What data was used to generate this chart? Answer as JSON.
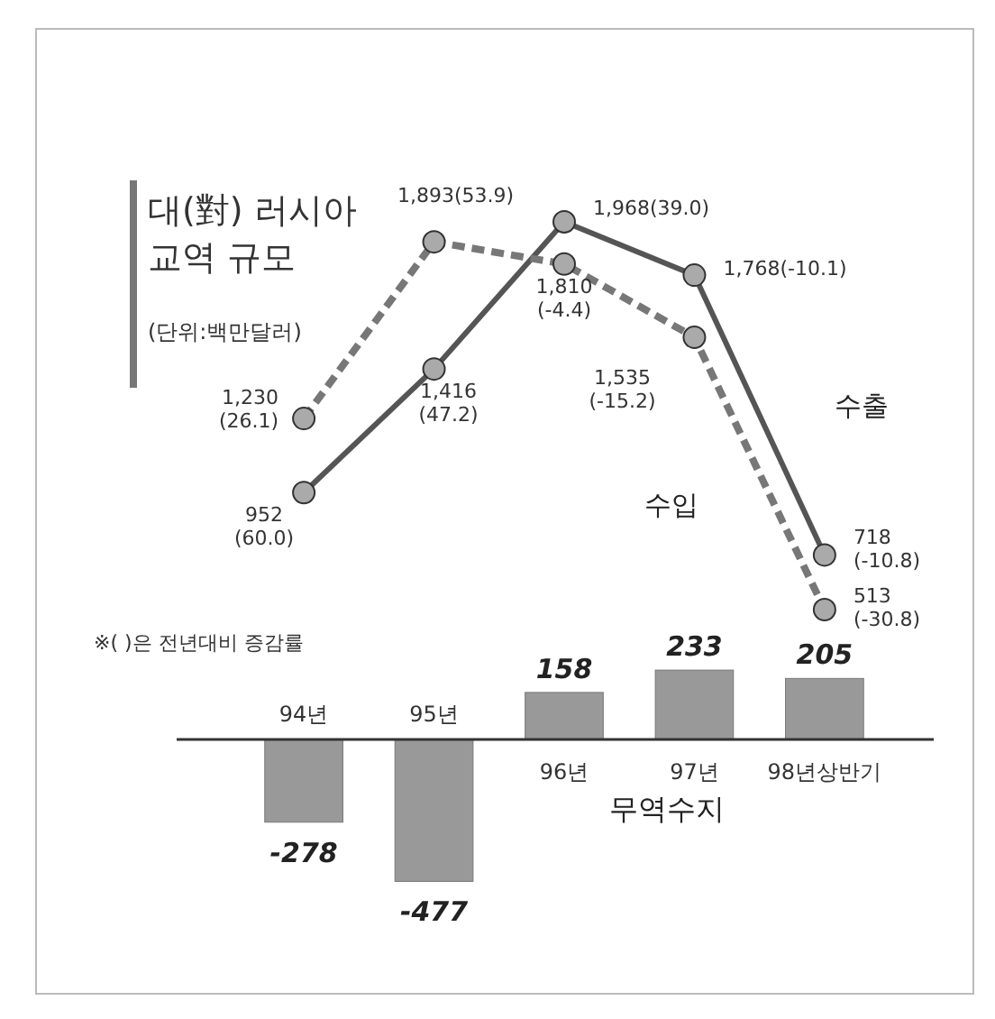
{
  "chart_data": [
    {
      "type": "line",
      "title": "대(對) 러시아\n교역 규모",
      "subtitle": "(단위:백만달러)",
      "annotations": [
        "※( )은 전년대비 증감률"
      ],
      "categories": [
        null,
        null,
        null,
        null,
        null
      ],
      "marker": "circle",
      "series": [
        {
          "name": "수출",
          "color": "#555555",
          "line_style": "solid",
          "values": [
            952,
            1416,
            1968,
            1768,
            718
          ],
          "value_labels": [
            "952\n(60.0)",
            "1,416\n(47.2)",
            "1,968(39.0)",
            "1,768(-10.1)",
            "718\n(-10.8)"
          ]
        },
        {
          "name": "수입",
          "color": "#777777",
          "line_style": "dashed",
          "values": [
            1230,
            1893,
            1810,
            1535,
            513
          ],
          "value_labels": [
            "1,230\n(26.1)",
            "1,893(53.9)",
            "1,810\n(-4.4)",
            "1,535\n(-15.2)",
            "513\n(-30.8)"
          ]
        }
      ]
    },
    {
      "type": "bar",
      "title": "무역수지",
      "categories": [
        "94년",
        "95년",
        "96년",
        "97년",
        "98년상반기"
      ],
      "values": [
        -278,
        -477,
        158,
        233,
        205
      ],
      "color": "#999999",
      "data_labels": true,
      "tick_labels": "x"
    }
  ]
}
